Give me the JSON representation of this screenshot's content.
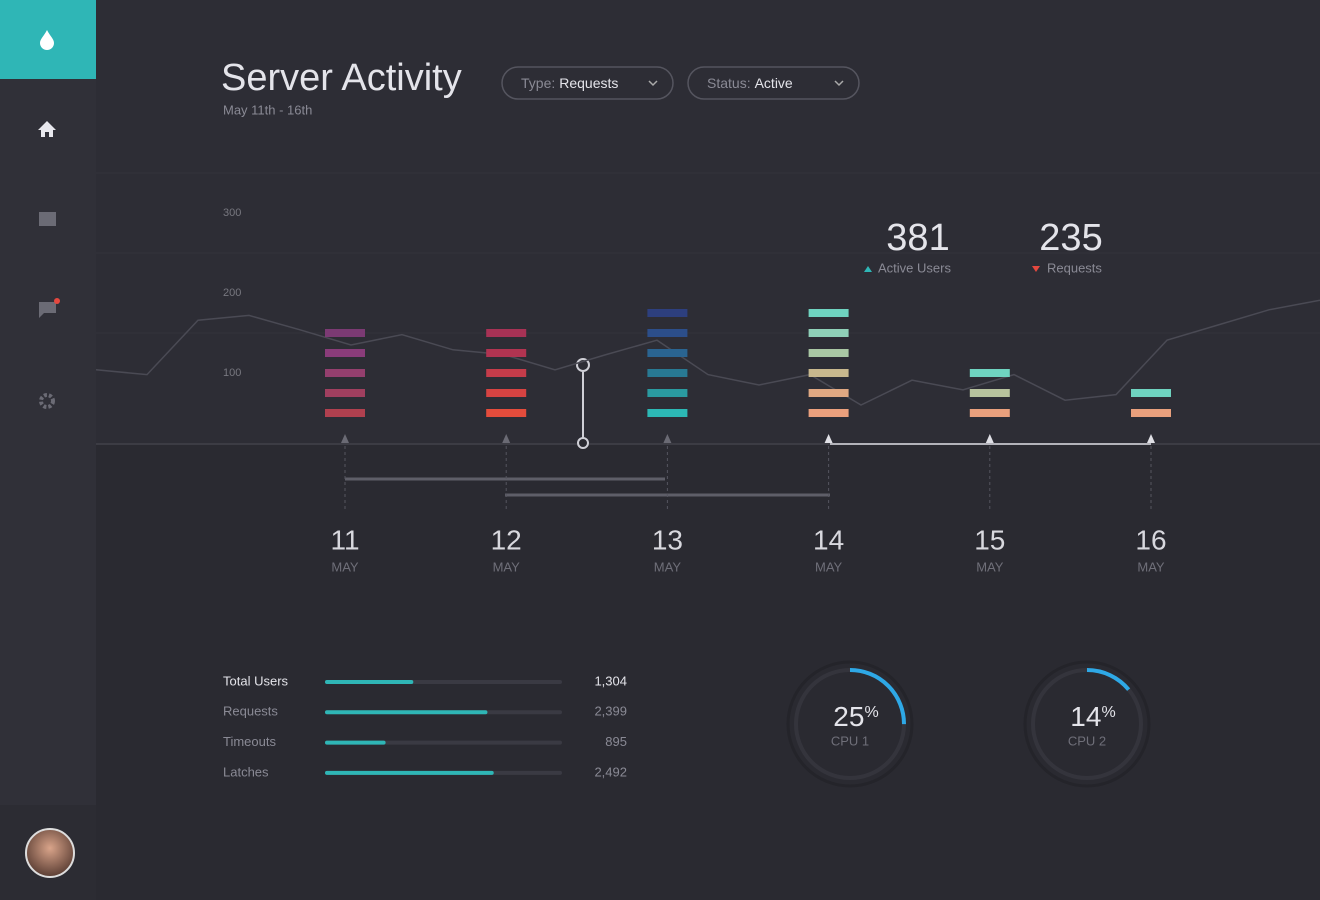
{
  "header": {
    "title": "Server Activity",
    "subtitle": "May 11th - 16th",
    "filters": [
      {
        "label": "Type:",
        "value": "Requests"
      },
      {
        "label": "Status:",
        "value": "Active"
      }
    ]
  },
  "chart_data": {
    "type": "line",
    "color": "#4a4a54",
    "values": [
      104,
      98,
      166,
      172,
      154,
      135,
      148,
      129,
      123,
      104,
      123,
      141,
      98,
      85,
      98,
      60,
      91,
      79,
      98,
      66,
      73,
      141,
      160,
      179,
      191
    ],
    "ylim": [
      0,
      300
    ],
    "yticks": [
      100,
      200,
      300
    ],
    "grid": true
  },
  "days": [
    {
      "day": "11",
      "month": "MAY",
      "colors": [
        "#b0404f",
        "#a03f5f",
        "#943f6e",
        "#8a3c7a",
        "#7b3a73"
      ]
    },
    {
      "day": "12",
      "month": "MAY",
      "colors": [
        "#e44c3c",
        "#d64342",
        "#c53c4a",
        "#b13451",
        "#a73255"
      ]
    },
    {
      "day": "13",
      "month": "MAY",
      "colors": [
        "#2cb8b5",
        "#2a9aa0",
        "#287993",
        "#2a6491",
        "#2c4e8a",
        "#2d3f7e"
      ]
    },
    {
      "day": "14",
      "month": "MAY",
      "colors": [
        "#eba07d",
        "#e0a882",
        "#c8b88e",
        "#a9c7a4",
        "#8fd0b8",
        "#6fd3c0"
      ]
    },
    {
      "day": "15",
      "month": "MAY",
      "colors": [
        "#e9a07d",
        "#b7c29d",
        "#6fd3c0"
      ]
    },
    {
      "day": "16",
      "month": "MAY",
      "colors": [
        "#e9a07d",
        "#6fd3c0"
      ]
    }
  ],
  "stats": [
    {
      "value": 381,
      "label": "Active Users",
      "trend": "up"
    },
    {
      "value": 235,
      "label": "Requests",
      "trend": "down"
    }
  ],
  "totals": {
    "xlim": [
      0,
      3500
    ],
    "rows": [
      {
        "label": "Total Users",
        "value": 1304,
        "value_label": "1,304"
      },
      {
        "label": "Requests",
        "value": 2399,
        "value_label": "2,399"
      },
      {
        "label": "Timeouts",
        "value": 895,
        "value_label": "895"
      },
      {
        "label": "Latches",
        "value": 2492,
        "value_label": "2,492"
      }
    ]
  },
  "gauges": [
    {
      "value": 25,
      "unit": "%",
      "label": "CPU 1"
    },
    {
      "value": 14,
      "unit": "%",
      "label": "CPU 2"
    }
  ]
}
